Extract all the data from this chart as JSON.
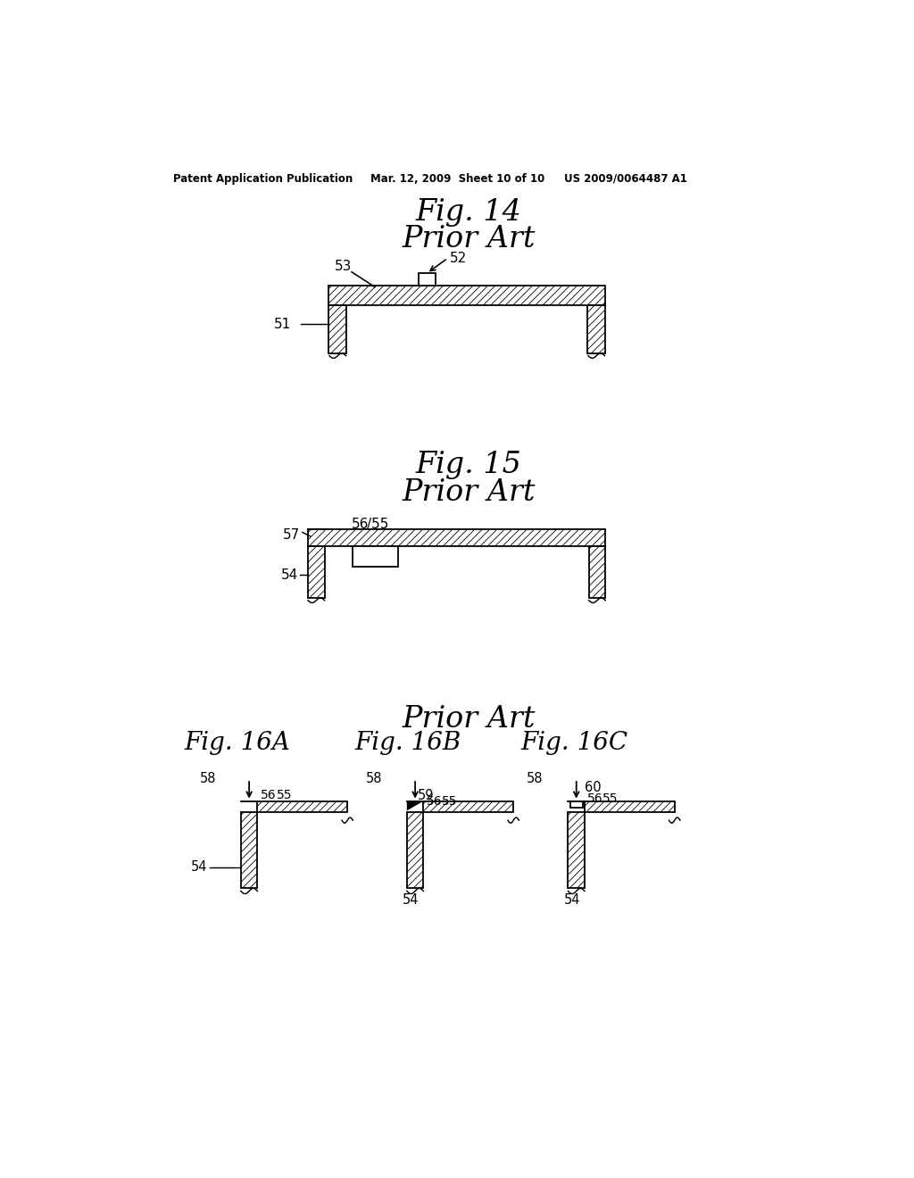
{
  "bg_color": "#ffffff",
  "header_left": "Patent Application Publication",
  "header_mid": "Mar. 12, 2009  Sheet 10 of 10",
  "header_right": "US 2009/0064487 A1",
  "fig14_title": "Fig. 14",
  "fig14_subtitle": "Prior Art",
  "fig15_title": "Fig. 15",
  "fig15_subtitle": "Prior Art",
  "fig16_title": "Prior Art",
  "fig16A_label": "Fig. 16A",
  "fig16B_label": "Fig. 16B",
  "fig16C_label": "Fig. 16C"
}
